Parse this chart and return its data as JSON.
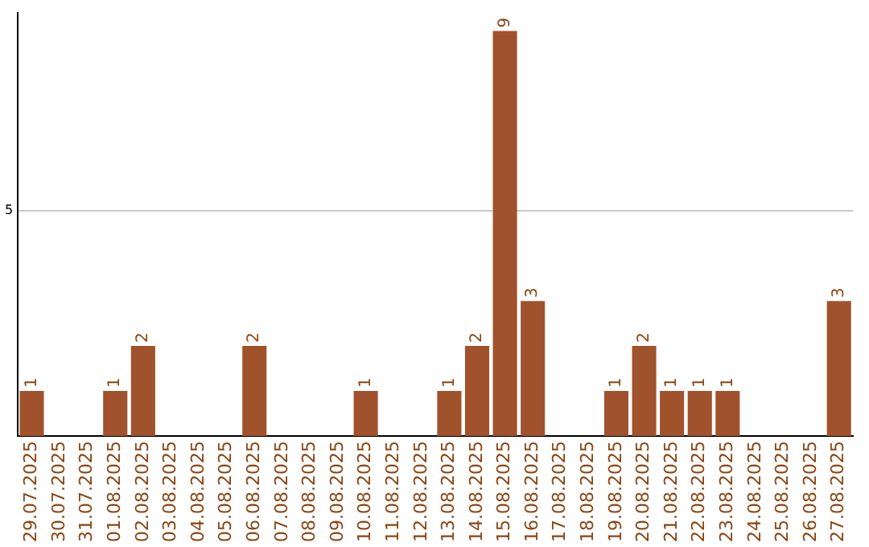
{
  "chart_data": {
    "type": "bar",
    "categories": [
      "29.07.2025",
      "30.07.2025",
      "31.07.2025",
      "01.08.2025",
      "02.08.2025",
      "03.08.2025",
      "04.08.2025",
      "05.08.2025",
      "06.08.2025",
      "07.08.2025",
      "08.08.2025",
      "09.08.2025",
      "10.08.2025",
      "11.08.2025",
      "12.08.2025",
      "13.08.2025",
      "14.08.2025",
      "15.08.2025",
      "16.08.2025",
      "17.08.2025",
      "18.08.2025",
      "19.08.2025",
      "20.08.2025",
      "21.08.2025",
      "22.08.2025",
      "23.08.2025",
      "24.08.2025",
      "25.08.2025",
      "26.08.2025",
      "27.08.2025"
    ],
    "values": [
      1,
      0,
      0,
      1,
      2,
      0,
      0,
      0,
      2,
      0,
      0,
      0,
      1,
      0,
      0,
      1,
      2,
      9,
      3,
      0,
      0,
      1,
      2,
      1,
      1,
      1,
      0,
      0,
      0,
      3
    ],
    "value_labels": [
      "1",
      null,
      null,
      "1",
      "2",
      null,
      null,
      null,
      "2",
      null,
      null,
      null,
      "1",
      null,
      null,
      "1",
      "2",
      "9",
      "3",
      null,
      null,
      "1",
      "2",
      "1",
      "1",
      "1",
      null,
      null,
      null,
      "3"
    ],
    "color": "#a0522d",
    "ylim": [
      0,
      9.4
    ],
    "yticks": [
      5
    ],
    "grid": "y",
    "legend": false
  }
}
